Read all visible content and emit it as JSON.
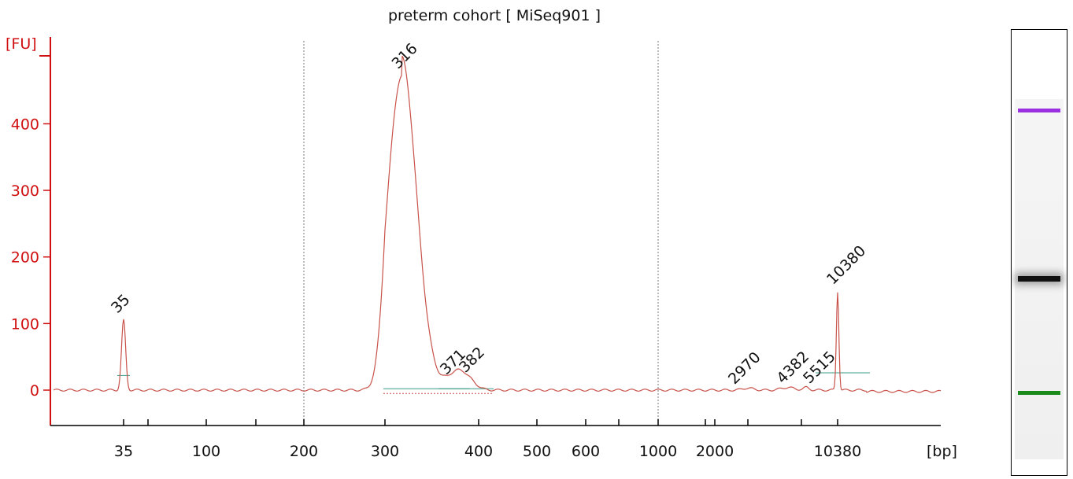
{
  "chart_data": {
    "type": "line",
    "title": "preterm cohort  [ MiSeq901 ]",
    "ylabel": "[FU]",
    "xlabel": "[bp]",
    "ylim": [
      -55,
      535
    ],
    "yticks": [
      0,
      100,
      200,
      300,
      400
    ],
    "xticks": [
      "35",
      "100",
      "200",
      "300",
      "400",
      "500",
      "600",
      "1000",
      "2000",
      "10380"
    ],
    "grid": "dotted vertical at 200 and 1000",
    "colors": {
      "axis": "#d01010",
      "trace": "#c8524a",
      "lower_marker": "#1a8a1a",
      "upper_marker": "#9b30e0",
      "label": "#111111",
      "baseline": "#3a9a8a"
    },
    "peaks": [
      {
        "label": "35",
        "size_bp": 35,
        "height": 105,
        "color": "#1a8a1a"
      },
      {
        "label": "316",
        "size_bp": 316,
        "height": 472,
        "color": "#111111"
      },
      {
        "label": "371",
        "size_bp": 371,
        "height": 15,
        "color": "#111111"
      },
      {
        "label": "382",
        "size_bp": 382,
        "height": 18,
        "color": "#111111"
      },
      {
        "label": "2970",
        "size_bp": 2970,
        "height": 3,
        "color": "#111111"
      },
      {
        "label": "4382",
        "size_bp": 4382,
        "height": 4,
        "color": "#111111"
      },
      {
        "label": "5515",
        "size_bp": 5515,
        "height": 4,
        "color": "#111111"
      },
      {
        "label": "10380",
        "size_bp": 10380,
        "height": 148,
        "color": "#9b30e0"
      }
    ],
    "gel_bands": [
      {
        "size_bp": 10380,
        "color": "#9b30e0"
      },
      {
        "size_bp": 316,
        "color": "#111111"
      },
      {
        "size_bp": 35,
        "color": "#1a8a1a"
      }
    ]
  }
}
